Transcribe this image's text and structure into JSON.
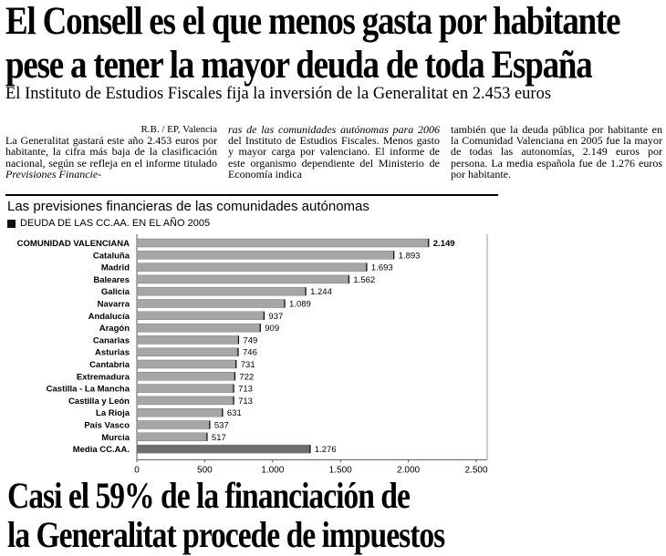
{
  "headline": {
    "line1": "El Consell es el que menos gasta por habitante",
    "line2": "pese a tener la mayor deuda de toda España"
  },
  "subhead": "El Instituto de Estudios Fiscales fija la inversión de la Generalitat en 2.453 euros",
  "article": {
    "byline_author": "R.B. / EP,",
    "byline_place": "Valencia",
    "col1": "La Generalitat gastará este año 2.453 euros por habitante, la cifra más baja de la clasificación nacional, según se refleja en el informe titulado",
    "col1_italic": "Previsiones Financie-",
    "col2_italic": "ras de las comunidades autónomas para 2006",
    "col2": "del Instituto de Estudios Fiscales. Menos gasto y mayor carga por valenciano. El informe de este organismo dependiente del Ministerio de Economía indica",
    "col3": "también que la deuda pública por habitante en la Comunidad Valenciana en 2005 fue la mayor de todas las autonomías, 2.149 euros por persona. La media española fue de 1.276 euros por habitante."
  },
  "chart_header": {
    "title": "Las previsiones financieras de las comunidades autónomas",
    "subtitle": "DEUDA DE LAS CC.AA. EN EL AÑO 2005"
  },
  "chart_data": {
    "type": "bar",
    "orientation": "horizontal",
    "title": "Las previsiones financieras de las comunidades autónomas",
    "subtitle": "DEUDA DE LAS CC.AA. EN EL AÑO 2005",
    "categories": [
      "COMUNIDAD VALENCIANA",
      "Cataluña",
      "Madrid",
      "Baleares",
      "Galicia",
      "Navarra",
      "Andalucía",
      "Aragón",
      "Canarias",
      "Asturias",
      "Cantabria",
      "Extremadura",
      "Castilla - La Mancha",
      "Castilla y León",
      "La Rioja",
      "País Vasco",
      "Murcia",
      "Media CC.AA."
    ],
    "values": [
      2149,
      1893,
      1693,
      1562,
      1244,
      1089,
      937,
      909,
      749,
      746,
      731,
      722,
      713,
      713,
      631,
      537,
      517,
      1276
    ],
    "value_labels": [
      "2.149",
      "1.893",
      "1.693",
      "1.562",
      "1.244",
      "1.089",
      "937",
      "909",
      "749",
      "746",
      "731",
      "722",
      "713",
      "713",
      "631",
      "537",
      "517",
      "1.276"
    ],
    "xlim": [
      0,
      2500
    ],
    "xticks": [
      0,
      500,
      1000,
      1500,
      2000,
      2500
    ],
    "xtick_labels": [
      "0",
      "500",
      "1.000",
      "1.500",
      "2.000",
      "2.500"
    ],
    "bar_color": "#a6a6a6",
    "highlight_color": "#6e6e6e",
    "grid": false
  },
  "bottom_headline": {
    "line1": "Casi el 59% de la financiación de",
    "line2": "la Generalitat procede de impuestos"
  }
}
